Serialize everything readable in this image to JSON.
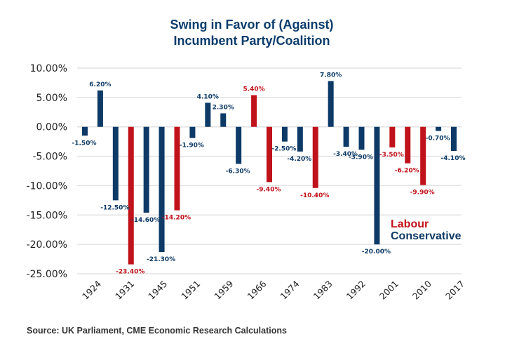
{
  "chart_data": {
    "type": "bar",
    "title": [
      "Swing in Favor of (Against)",
      "Incumbent Party/Coalition"
    ],
    "xlabel": "",
    "ylabel": "",
    "ylim": [
      -25,
      10
    ],
    "yticks": [
      10,
      5,
      0,
      -5,
      -10,
      -15,
      -20,
      -25
    ],
    "ytick_labels": [
      "10.00%",
      "5.00%",
      "0.00%",
      "-5.00%",
      "-10.00%",
      "-15.00%",
      "-20.00%",
      "-25.00%"
    ],
    "grid": true,
    "xtick_labels": [
      "1924",
      "1931",
      "1945",
      "1951",
      "1959",
      "1966",
      "1974",
      "1983",
      "1992",
      "2001",
      "2010",
      "2017"
    ],
    "values": [
      -1.5,
      6.2,
      -12.5,
      -23.4,
      -14.6,
      -21.3,
      -14.2,
      -1.9,
      4.1,
      2.3,
      -6.3,
      5.4,
      -9.4,
      -2.5,
      -4.2,
      -10.4,
      7.8,
      -3.4,
      -3.9,
      -20.0,
      -3.5,
      -6.2,
      -9.9,
      -0.7,
      -4.1
    ],
    "value_labels": [
      "-1.50%",
      "6.20%",
      "-12.50%",
      "-23.40%",
      "-14.60%",
      "-21.30%",
      "-14.20%",
      "-1.90%",
      "4.10%",
      "2.30%",
      "-6.30%",
      "5.40%",
      "-9.40%",
      "-2.50%",
      "-4.20%",
      "-10.40%",
      "7.80%",
      "-3.40%",
      "-3.90%",
      "-20.00%",
      "-3.50%",
      "-6.20%",
      "-9.90%",
      "-0.70%",
      "-4.10%"
    ],
    "party": [
      "Conservative",
      "Conservative",
      "Conservative",
      "Labour",
      "Conservative",
      "Conservative",
      "Labour",
      "Conservative",
      "Conservative",
      "Conservative",
      "Conservative",
      "Labour",
      "Labour",
      "Conservative",
      "Conservative",
      "Labour",
      "Conservative",
      "Conservative",
      "Conservative",
      "Conservative",
      "Labour",
      "Labour",
      "Labour",
      "Conservative",
      "Conservative"
    ],
    "legend": {
      "position": "lower-right",
      "entries": [
        {
          "name": "Labour",
          "color": "#c0121a"
        },
        {
          "name": "Conservative",
          "color": "#0d3a66"
        }
      ]
    }
  },
  "colors": {
    "Labour": "#c0121a",
    "Conservative": "#0d3a66",
    "title": "#0b3c6b"
  },
  "source": "Source: UK Parliament, CME Economic Research Calculations"
}
